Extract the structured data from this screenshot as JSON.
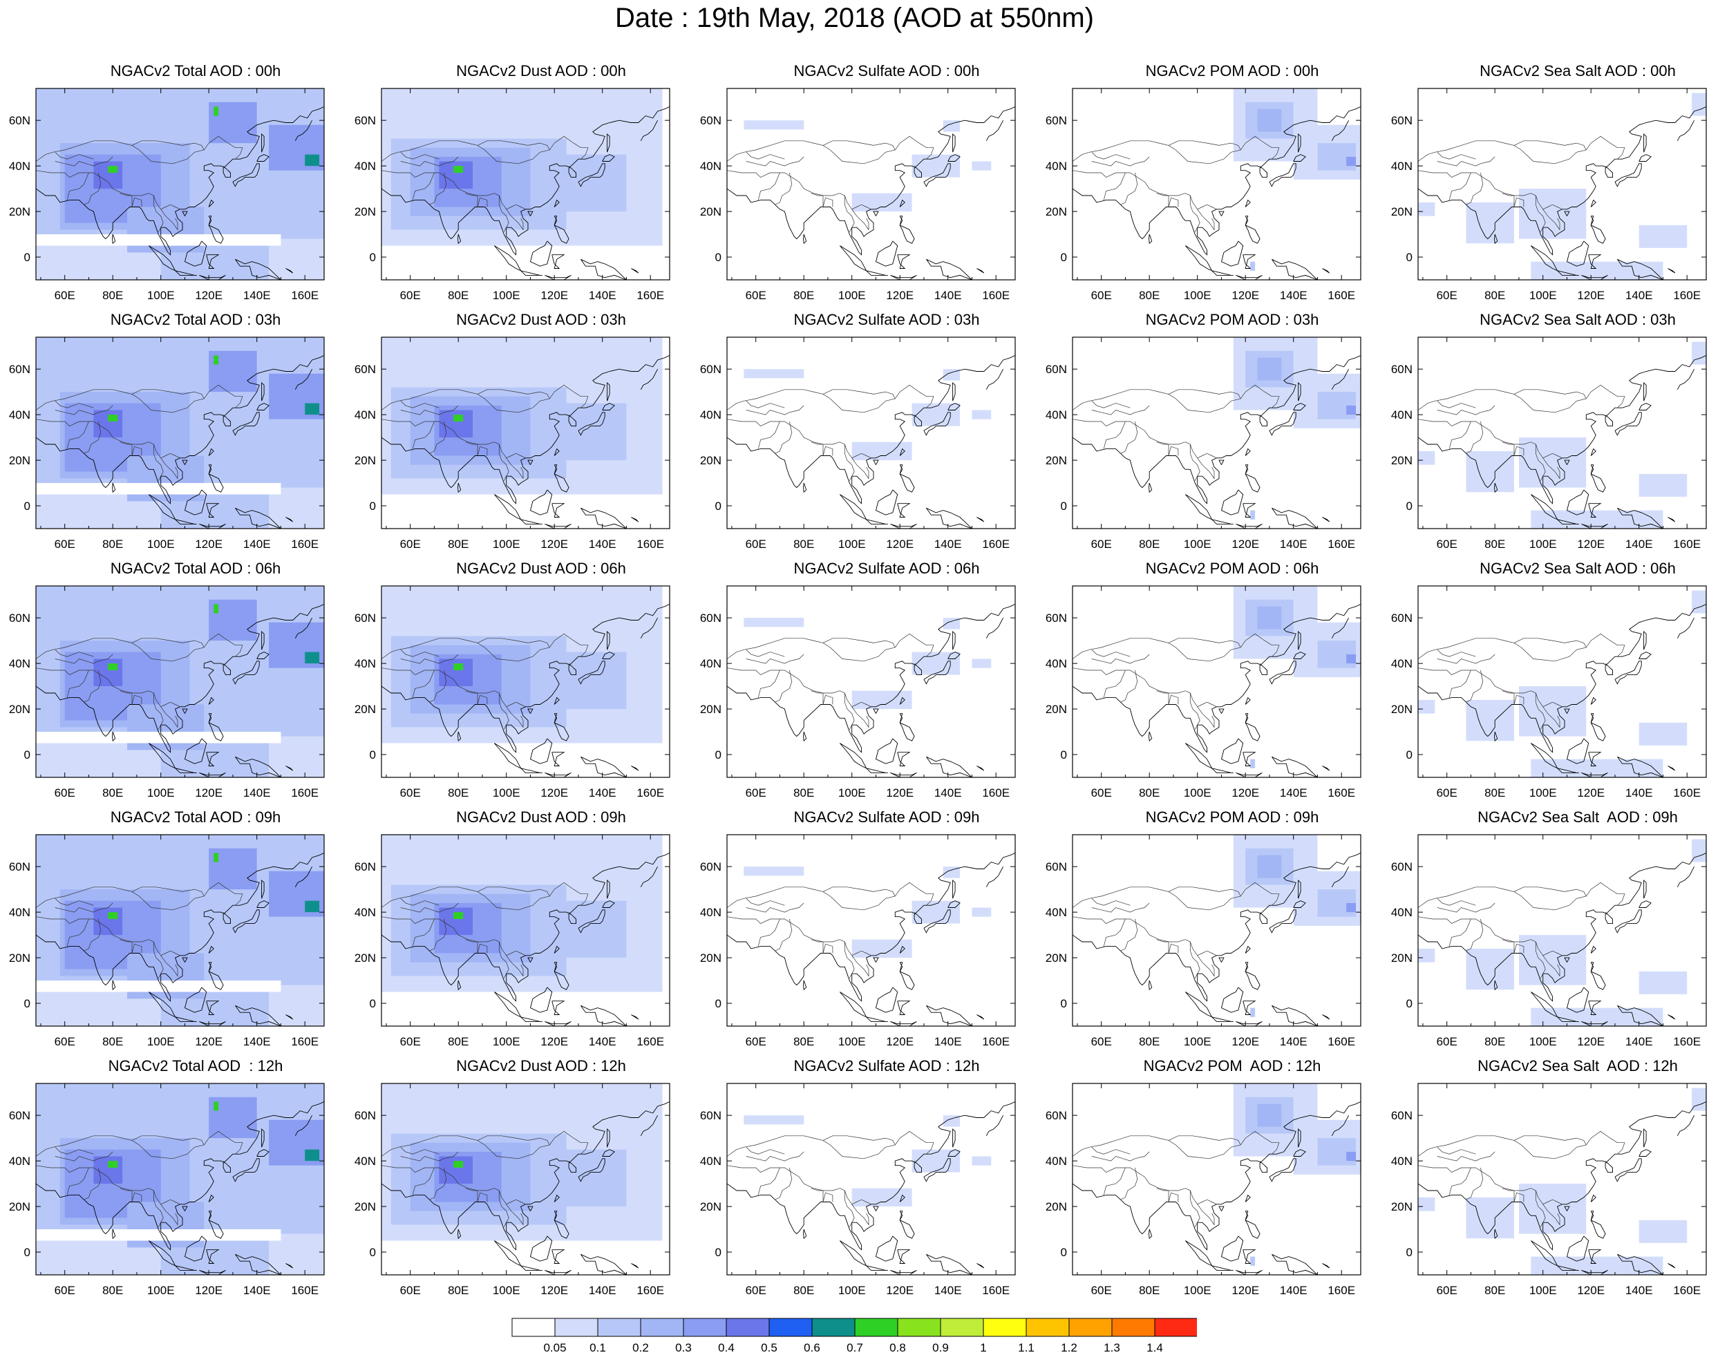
{
  "title": "Date : 19th May, 2018 (AOD at 550nm)",
  "lat_ticks": [
    "60N",
    "40N",
    "20N",
    "0"
  ],
  "lon_ticks": [
    "60E",
    "80E",
    "100E",
    "120E",
    "140E",
    "160E"
  ],
  "panels": [
    {
      "title": "NGACv2 Total AOD : 00h",
      "kind": "total"
    },
    {
      "title": "NGACv2 Dust AOD : 00h",
      "kind": "dust"
    },
    {
      "title": "NGACv2 Sulfate AOD : 00h",
      "kind": "sulfate"
    },
    {
      "title": "NGACv2 POM AOD : 00h",
      "kind": "pom"
    },
    {
      "title": "NGACv2 Sea Salt AOD : 00h",
      "kind": "seasalt"
    },
    {
      "title": "NGACv2 Total AOD : 03h",
      "kind": "total"
    },
    {
      "title": "NGACv2 Dust AOD : 03h",
      "kind": "dust"
    },
    {
      "title": "NGACv2 Sulfate AOD : 03h",
      "kind": "sulfate"
    },
    {
      "title": "NGACv2 POM AOD : 03h",
      "kind": "pom"
    },
    {
      "title": "NGACv2 Sea Salt AOD : 03h",
      "kind": "seasalt"
    },
    {
      "title": "NGACv2 Total AOD : 06h",
      "kind": "total"
    },
    {
      "title": "NGACv2 Dust AOD : 06h",
      "kind": "dust"
    },
    {
      "title": "NGACv2 Sulfate AOD : 06h",
      "kind": "sulfate"
    },
    {
      "title": "NGACv2 POM AOD : 06h",
      "kind": "pom"
    },
    {
      "title": "NGACv2 Sea Salt AOD : 06h",
      "kind": "seasalt"
    },
    {
      "title": "NGACv2 Total AOD : 09h",
      "kind": "total"
    },
    {
      "title": "NGACv2 Dust AOD : 09h",
      "kind": "dust"
    },
    {
      "title": "NGACv2 Sulfate AOD : 09h",
      "kind": "sulfate"
    },
    {
      "title": "NGACv2 POM AOD : 09h",
      "kind": "pom"
    },
    {
      "title": "NGACv2 Sea Salt  AOD : 09h",
      "kind": "seasalt"
    },
    {
      "title": "NGACv2 Total AOD  : 12h",
      "kind": "total"
    },
    {
      "title": "NGACv2 Dust AOD : 12h",
      "kind": "dust"
    },
    {
      "title": "NGACv2 Sulfate AOD : 12h",
      "kind": "sulfate"
    },
    {
      "title": "NGACv2 POM  AOD : 12h",
      "kind": "pom"
    },
    {
      "title": "NGACv2 Sea Salt  AOD : 12h",
      "kind": "seasalt"
    }
  ],
  "colorbar": {
    "colors": [
      "#ffffff",
      "#d3ddfb",
      "#b7c8f8",
      "#a2b5f5",
      "#8a9df2",
      "#6b76ea",
      "#1f5ff2",
      "#0f8f8c",
      "#2fd025",
      "#89e21e",
      "#bfed3a",
      "#ffff0f",
      "#ffc400",
      "#ffa200",
      "#ff7a00",
      "#ff2a13"
    ],
    "labels": [
      "0.05",
      "0.1",
      "0.2",
      "0.3",
      "0.4",
      "0.5",
      "0.6",
      "0.7",
      "0.8",
      "0.9",
      "1",
      "1.1",
      "1.2",
      "1.3",
      "1.4"
    ]
  }
}
